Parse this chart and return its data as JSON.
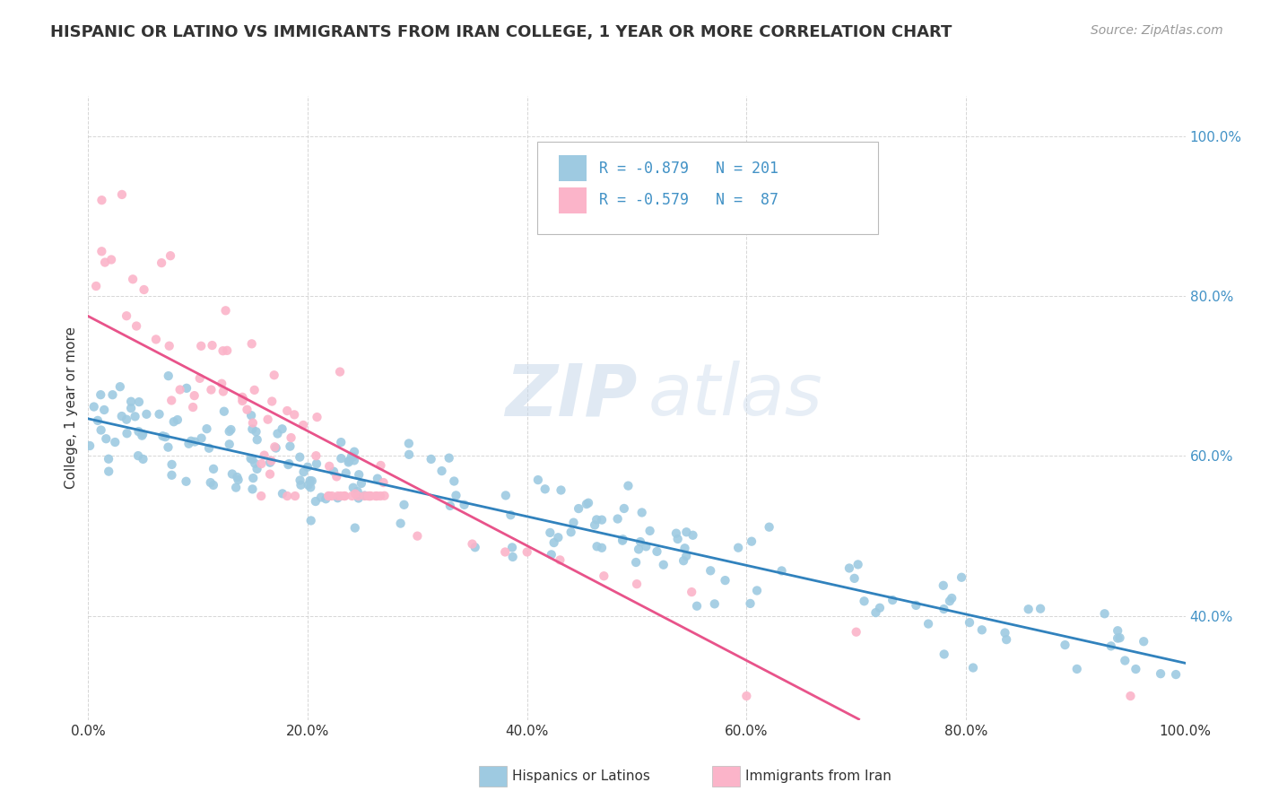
{
  "title": "HISPANIC OR LATINO VS IMMIGRANTS FROM IRAN COLLEGE, 1 YEAR OR MORE CORRELATION CHART",
  "source_text": "Source: ZipAtlas.com",
  "ylabel": "College, 1 year or more",
  "xlim": [
    0.0,
    1.0
  ],
  "ylim": [
    0.27,
    1.05
  ],
  "x_tick_labels": [
    "0.0%",
    "20.0%",
    "40.0%",
    "60.0%",
    "80.0%",
    "100.0%"
  ],
  "x_tick_values": [
    0.0,
    0.2,
    0.4,
    0.6,
    0.8,
    1.0
  ],
  "y_tick_labels": [
    "40.0%",
    "60.0%",
    "80.0%",
    "100.0%"
  ],
  "y_tick_values": [
    0.4,
    0.6,
    0.8,
    1.0
  ],
  "legend_labels": [
    "Hispanics or Latinos",
    "Immigrants from Iran"
  ],
  "blue_color": "#9ecae1",
  "pink_color": "#fbb4c9",
  "blue_line_color": "#3182bd",
  "pink_line_color": "#e8538a",
  "watermark_zip": "ZIP",
  "watermark_atlas": "atlas",
  "r_blue": "R = -0.879",
  "n_blue": "N = 201",
  "r_pink": "R = -0.579",
  "n_pink": "N =  87",
  "tick_color": "#4292c6",
  "title_color": "#333333",
  "source_color": "#999999",
  "grid_color": "#cccccc",
  "legend_edge_color": "#bbbbbb"
}
